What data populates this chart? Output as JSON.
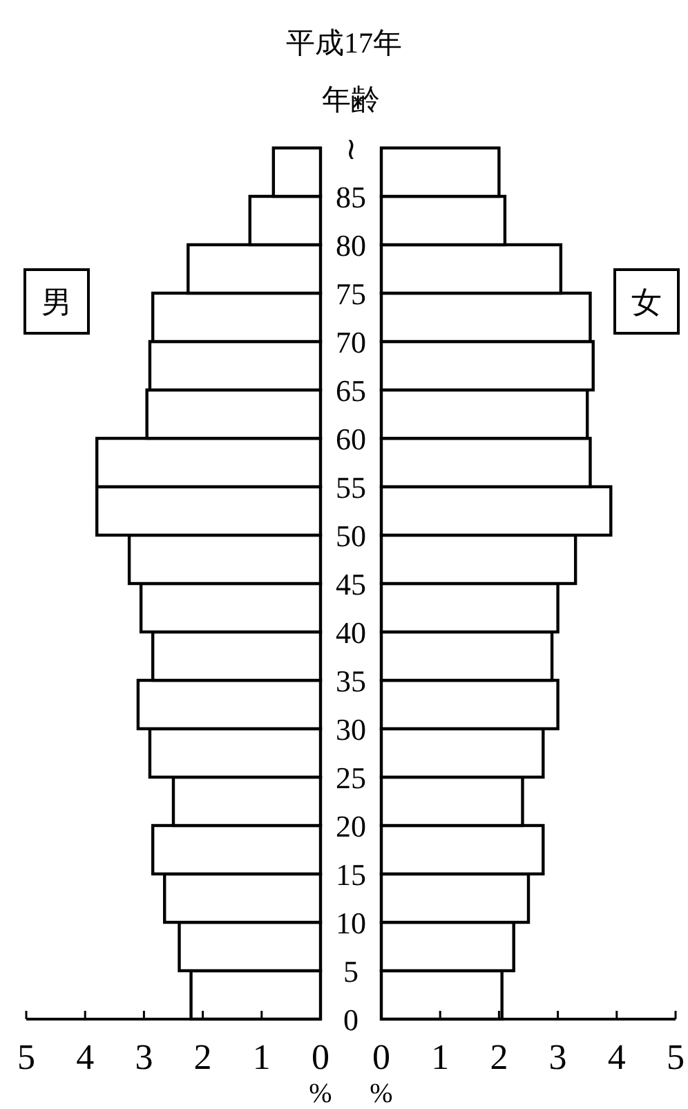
{
  "chart_data": [
    {
      "type": "histogram",
      "orientation": "horizontal",
      "title": "平成17年",
      "ylabel": "年齢",
      "xlabel": "%",
      "annotations": [
        "男"
      ],
      "color": "#ffffff",
      "grid": false,
      "bins": [
        0,
        5,
        10,
        15,
        20,
        25,
        30,
        35,
        40,
        45,
        50,
        55,
        60,
        65,
        70,
        75,
        80,
        85,
        90
      ],
      "values": [
        2.2,
        2.4,
        2.65,
        2.85,
        2.5,
        2.9,
        3.1,
        2.85,
        3.05,
        3.25,
        3.8,
        3.8,
        2.95,
        2.9,
        2.85,
        2.25,
        1.2,
        0.8
      ],
      "xlim": [
        5,
        0
      ],
      "xticks": [
        5,
        4,
        3,
        2,
        1,
        0
      ],
      "ylim": [
        0,
        90
      ],
      "yticks": [
        0,
        5,
        10,
        15,
        20,
        25,
        30,
        35,
        40,
        45,
        50,
        55,
        60,
        65,
        70,
        75,
        80,
        85,
        {
          "value": 90,
          "label": "≀"
        }
      ]
    },
    {
      "type": "histogram",
      "orientation": "horizontal",
      "xlabel": "%",
      "annotations": [
        "女"
      ],
      "color": "#ffffff",
      "grid": false,
      "tick_labels": "x",
      "bins": [
        0,
        5,
        10,
        15,
        20,
        25,
        30,
        35,
        40,
        45,
        50,
        55,
        60,
        65,
        70,
        75,
        80,
        85,
        90
      ],
      "values": [
        2.05,
        2.25,
        2.5,
        2.75,
        2.4,
        2.75,
        3.0,
        2.9,
        3.0,
        3.3,
        3.9,
        3.55,
        3.5,
        3.6,
        3.55,
        3.05,
        2.1,
        2.0
      ],
      "xlim": [
        0,
        5
      ],
      "xticks": [
        0,
        1,
        2,
        3,
        4,
        5
      ],
      "ylim": [
        0,
        90
      ]
    }
  ]
}
